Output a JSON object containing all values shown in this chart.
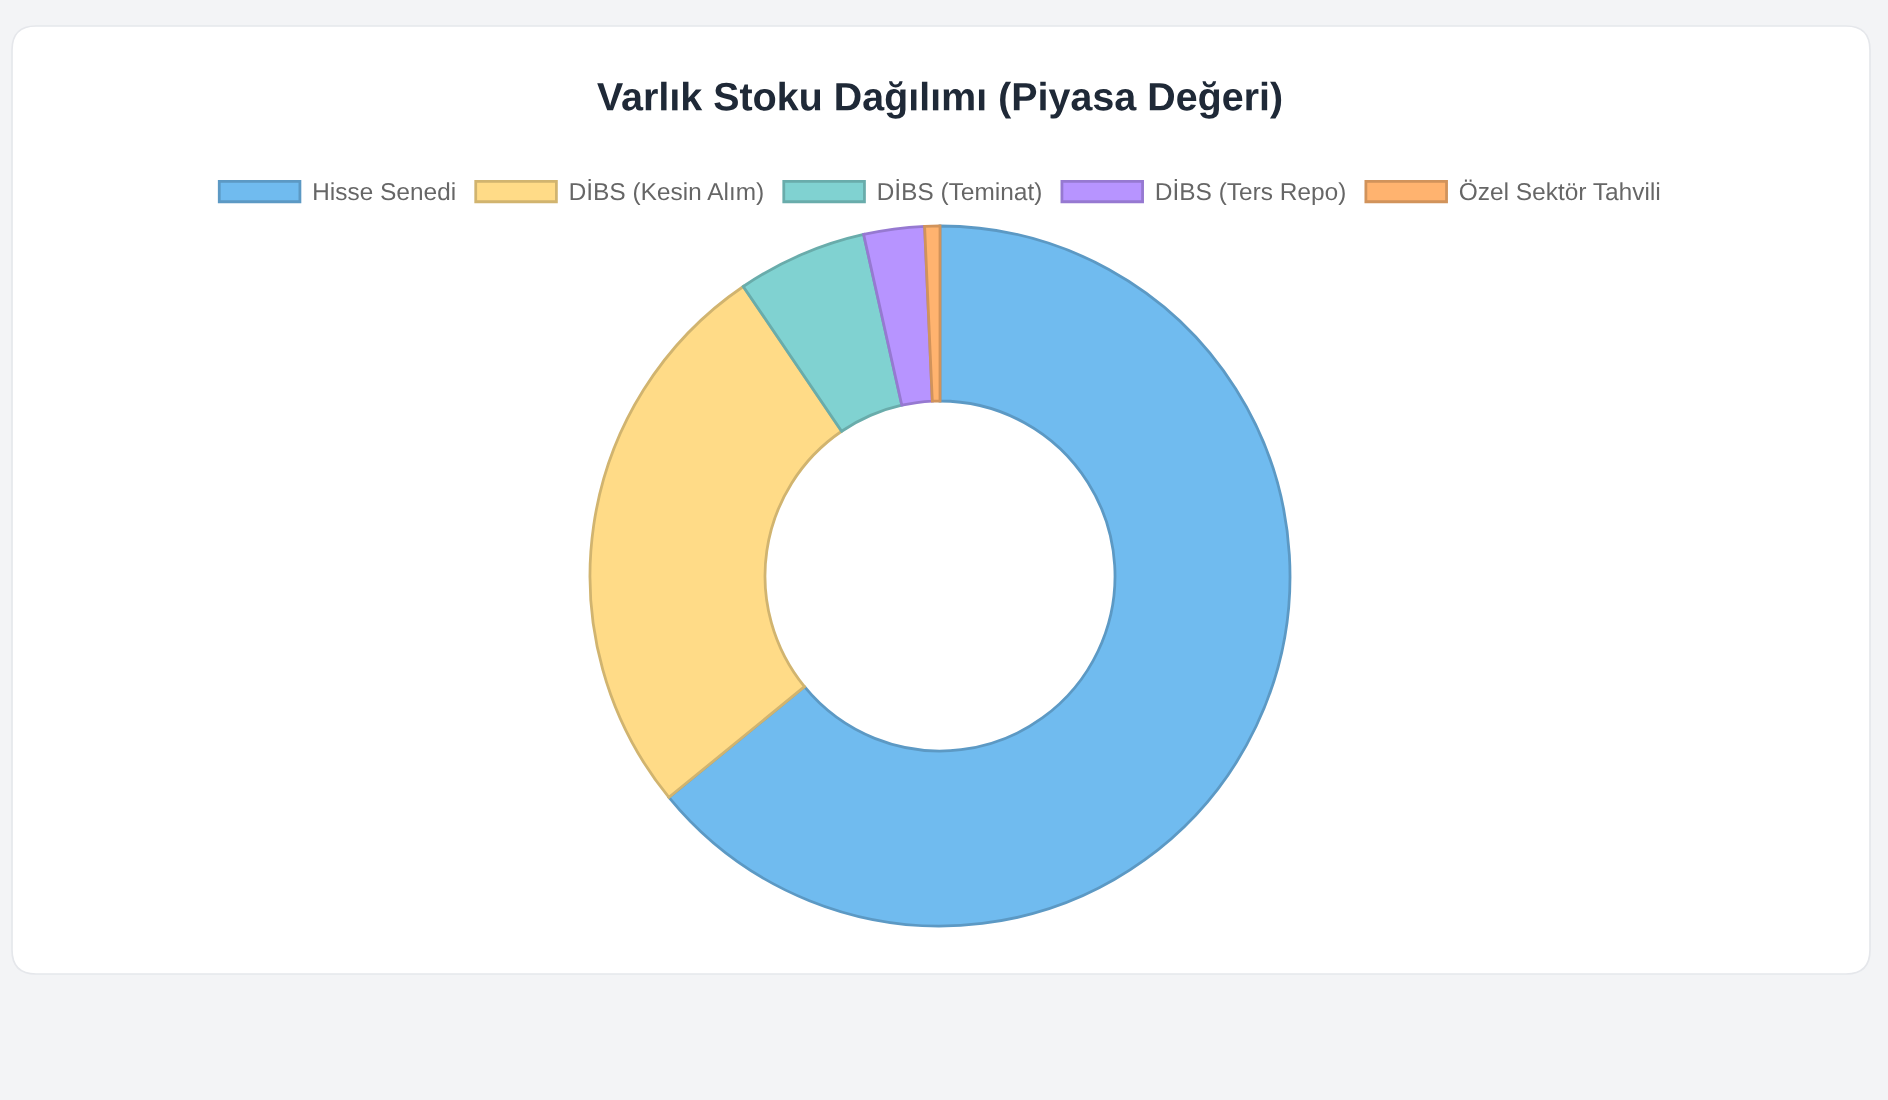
{
  "chart_data": {
    "type": "donut",
    "title": "Varlık Stoku Dağılımı (Piyasa Değeri)",
    "categories": [
      "Hisse Senedi",
      "DİBS (Kesin Alım)",
      "DİBS (Teminat)",
      "DİBS (Ters Repo)",
      "Özel Sektör Tahvili"
    ],
    "values": [
      64.1,
      26.4,
      6.0,
      2.8,
      0.7
    ],
    "colors": [
      "#70bbef",
      "#ffdb87",
      "#80d2d1",
      "#b794ff",
      "#ffb36f"
    ],
    "legend": "top"
  }
}
